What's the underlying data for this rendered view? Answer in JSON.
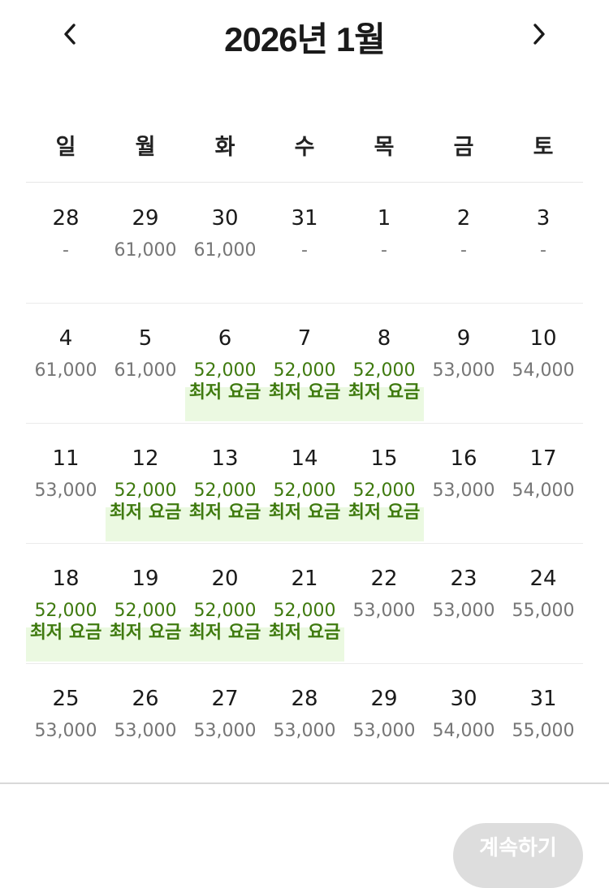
{
  "header": {
    "title": "2026년 1월",
    "prev_icon": "chevron-left-icon",
    "next_icon": "chevron-right-icon"
  },
  "weekdays": [
    "일",
    "월",
    "화",
    "수",
    "목",
    "금",
    "토"
  ],
  "lowest_label": "최저 요금",
  "colors": {
    "lowest_text": "#3f7a0f",
    "lowest_highlight": "#ebf9e1",
    "price_text": "#767676"
  },
  "weeks": [
    [
      {
        "day": "28",
        "price": "-",
        "lowest": false
      },
      {
        "day": "29",
        "price": "61,000",
        "lowest": false
      },
      {
        "day": "30",
        "price": "61,000",
        "lowest": false
      },
      {
        "day": "31",
        "price": "-",
        "lowest": false
      },
      {
        "day": "1",
        "price": "-",
        "lowest": false
      },
      {
        "day": "2",
        "price": "-",
        "lowest": false
      },
      {
        "day": "3",
        "price": "-",
        "lowest": false
      }
    ],
    [
      {
        "day": "4",
        "price": "61,000",
        "lowest": false
      },
      {
        "day": "5",
        "price": "61,000",
        "lowest": false
      },
      {
        "day": "6",
        "price": "52,000",
        "lowest": true
      },
      {
        "day": "7",
        "price": "52,000",
        "lowest": true
      },
      {
        "day": "8",
        "price": "52,000",
        "lowest": true
      },
      {
        "day": "9",
        "price": "53,000",
        "lowest": false
      },
      {
        "day": "10",
        "price": "54,000",
        "lowest": false
      }
    ],
    [
      {
        "day": "11",
        "price": "53,000",
        "lowest": false
      },
      {
        "day": "12",
        "price": "52,000",
        "lowest": true
      },
      {
        "day": "13",
        "price": "52,000",
        "lowest": true
      },
      {
        "day": "14",
        "price": "52,000",
        "lowest": true
      },
      {
        "day": "15",
        "price": "52,000",
        "lowest": true
      },
      {
        "day": "16",
        "price": "53,000",
        "lowest": false
      },
      {
        "day": "17",
        "price": "54,000",
        "lowest": false
      }
    ],
    [
      {
        "day": "18",
        "price": "52,000",
        "lowest": true
      },
      {
        "day": "19",
        "price": "52,000",
        "lowest": true
      },
      {
        "day": "20",
        "price": "52,000",
        "lowest": true
      },
      {
        "day": "21",
        "price": "52,000",
        "lowest": true
      },
      {
        "day": "22",
        "price": "53,000",
        "lowest": false
      },
      {
        "day": "23",
        "price": "53,000",
        "lowest": false
      },
      {
        "day": "24",
        "price": "55,000",
        "lowest": false
      }
    ],
    [
      {
        "day": "25",
        "price": "53,000",
        "lowest": false
      },
      {
        "day": "26",
        "price": "53,000",
        "lowest": false
      },
      {
        "day": "27",
        "price": "53,000",
        "lowest": false
      },
      {
        "day": "28",
        "price": "53,000",
        "lowest": false
      },
      {
        "day": "29",
        "price": "53,000",
        "lowest": false
      },
      {
        "day": "30",
        "price": "54,000",
        "lowest": false
      },
      {
        "day": "31",
        "price": "55,000",
        "lowest": false
      }
    ]
  ],
  "footer": {
    "continue_label": "계속하기"
  }
}
